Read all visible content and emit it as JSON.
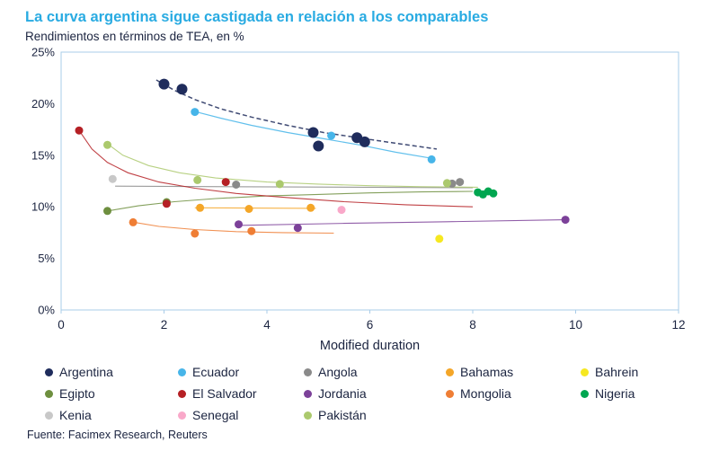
{
  "page": {
    "title": "La curva argentina sigue castigada en relación a los comparables",
    "subtitle": "Rendimientos en términos de TEA, en %",
    "source": "Fuente: Facimex Research, Reuters"
  },
  "colors": {
    "title": "#29abe2",
    "text": "#1b2440",
    "plot_border": "#a9cce8"
  },
  "chart_data": {
    "type": "scatter",
    "title": "La curva argentina sigue castigada en relación a los comparables",
    "subtitle": "Rendimientos en términos de TEA, en %",
    "xlabel": "Modified duration",
    "ylabel": "",
    "xlim": [
      0,
      12
    ],
    "ylim": [
      0,
      25
    ],
    "xticks": [
      0,
      2,
      4,
      6,
      8,
      10,
      12
    ],
    "yticks": [
      0,
      5,
      10,
      15,
      20,
      25
    ],
    "ytick_suffix": "%",
    "grid": false,
    "legend_position": "bottom",
    "series": [
      {
        "name": "Argentina",
        "color": "#1f2c5c",
        "marker_size": 6,
        "points": [
          [
            2.0,
            21.9
          ],
          [
            2.35,
            21.4
          ],
          [
            4.9,
            17.2
          ],
          [
            5.0,
            15.9
          ],
          [
            5.75,
            16.7
          ],
          [
            5.9,
            16.3
          ]
        ],
        "trend": [
          [
            1.85,
            22.3
          ],
          [
            2.2,
            21.3
          ],
          [
            2.6,
            20.4
          ],
          [
            3.1,
            19.5
          ],
          [
            3.7,
            18.7
          ],
          [
            4.4,
            17.9
          ],
          [
            5.1,
            17.2
          ],
          [
            5.9,
            16.6
          ],
          [
            6.6,
            16.1
          ],
          [
            7.3,
            15.6
          ]
        ],
        "trend_dash": true,
        "trend_width": 1.5
      },
      {
        "name": "Ecuador",
        "color": "#47b5e9",
        "marker_size": 4.5,
        "points": [
          [
            2.6,
            19.2
          ],
          [
            5.25,
            16.9
          ],
          [
            7.2,
            14.6
          ]
        ],
        "trend": [
          [
            2.55,
            19.3
          ],
          [
            3.1,
            18.6
          ],
          [
            3.7,
            17.9
          ],
          [
            4.4,
            17.2
          ],
          [
            5.1,
            16.6
          ],
          [
            5.8,
            16.0
          ],
          [
            6.5,
            15.3
          ],
          [
            7.2,
            14.7
          ]
        ],
        "trend_dash": false,
        "trend_width": 1.2
      },
      {
        "name": "Angola",
        "color": "#8a8a8a",
        "marker_size": 4.5,
        "points": [
          [
            3.4,
            12.15
          ],
          [
            7.6,
            12.25
          ],
          [
            7.75,
            12.4
          ]
        ],
        "trend": [
          [
            1.05,
            12.0
          ],
          [
            8.0,
            11.85
          ]
        ],
        "trend_dash": false,
        "trend_width": 1.1
      },
      {
        "name": "Bahamas",
        "color": "#f4a628",
        "marker_size": 4.5,
        "points": [
          [
            2.7,
            9.9
          ],
          [
            3.65,
            9.8
          ],
          [
            4.85,
            9.9
          ]
        ],
        "trend": [
          [
            2.6,
            9.9
          ],
          [
            4.95,
            9.85
          ]
        ],
        "trend_dash": false,
        "trend_width": 1.1
      },
      {
        "name": "Bahrein",
        "color": "#f6e821",
        "marker_size": 4.5,
        "points": [
          [
            7.35,
            6.9
          ]
        ],
        "trend": [],
        "trend_dash": false,
        "trend_width": 1.1
      },
      {
        "name": "Egipto",
        "color": "#6e8f3f",
        "marker_size": 4.5,
        "points": [
          [
            0.9,
            9.6
          ],
          [
            2.05,
            10.45
          ]
        ],
        "trend": [
          [
            0.9,
            9.6
          ],
          [
            1.5,
            10.1
          ],
          [
            2.2,
            10.5
          ],
          [
            3.0,
            10.8
          ],
          [
            4.0,
            11.05
          ],
          [
            5.0,
            11.2
          ],
          [
            6.0,
            11.35
          ],
          [
            7.0,
            11.45
          ],
          [
            8.0,
            11.5
          ]
        ],
        "trend_dash": false,
        "trend_width": 1.1
      },
      {
        "name": "El Salvador",
        "color": "#b52025",
        "marker_size": 4.5,
        "points": [
          [
            0.35,
            17.4
          ],
          [
            2.05,
            10.3
          ],
          [
            3.2,
            12.4
          ]
        ],
        "trend": [
          [
            0.35,
            17.4
          ],
          [
            0.6,
            15.6
          ],
          [
            0.9,
            14.3
          ],
          [
            1.3,
            13.3
          ],
          [
            1.9,
            12.4
          ],
          [
            2.6,
            11.8
          ],
          [
            3.4,
            11.3
          ],
          [
            4.4,
            10.9
          ],
          [
            5.5,
            10.5
          ],
          [
            6.7,
            10.2
          ],
          [
            8.0,
            10.0
          ]
        ],
        "trend_dash": false,
        "trend_width": 1.1
      },
      {
        "name": "Jordania",
        "color": "#7c4199",
        "marker_size": 4.5,
        "points": [
          [
            3.45,
            8.3
          ],
          [
            4.6,
            7.95
          ],
          [
            9.8,
            8.75
          ]
        ],
        "trend": [
          [
            3.4,
            8.2
          ],
          [
            5.5,
            8.4
          ],
          [
            7.5,
            8.55
          ],
          [
            9.8,
            8.75
          ]
        ],
        "trend_dash": false,
        "trend_width": 1.1
      },
      {
        "name": "Mongolia",
        "color": "#ef7e35",
        "marker_size": 4.5,
        "points": [
          [
            1.4,
            8.5
          ],
          [
            2.6,
            7.4
          ],
          [
            3.7,
            7.65
          ]
        ],
        "trend": [
          [
            1.35,
            8.55
          ],
          [
            1.9,
            8.1
          ],
          [
            2.6,
            7.8
          ],
          [
            3.4,
            7.6
          ],
          [
            4.3,
            7.5
          ],
          [
            5.3,
            7.45
          ]
        ],
        "trend_dash": false,
        "trend_width": 1.1
      },
      {
        "name": "Nigeria",
        "color": "#00a650",
        "marker_size": 4.5,
        "points": [
          [
            8.1,
            11.4
          ],
          [
            8.2,
            11.2
          ],
          [
            8.3,
            11.5
          ],
          [
            8.4,
            11.3
          ]
        ],
        "trend": [],
        "trend_dash": false,
        "trend_width": 1.1
      },
      {
        "name": "Kenia",
        "color": "#c8c8c8",
        "marker_size": 4.5,
        "points": [
          [
            1.0,
            12.7
          ]
        ],
        "trend": [],
        "trend_dash": false,
        "trend_width": 1.1
      },
      {
        "name": "Senegal",
        "color": "#f9a8c9",
        "marker_size": 4.5,
        "points": [
          [
            5.45,
            9.7
          ]
        ],
        "trend": [],
        "trend_dash": false,
        "trend_width": 1.1
      },
      {
        "name": "Pakistán",
        "color": "#abc96d",
        "marker_size": 4.5,
        "points": [
          [
            0.9,
            16.0
          ],
          [
            2.65,
            12.6
          ],
          [
            4.25,
            12.2
          ],
          [
            7.5,
            12.3
          ]
        ],
        "trend": [
          [
            0.85,
            16.3
          ],
          [
            1.2,
            15.0
          ],
          [
            1.7,
            14.0
          ],
          [
            2.3,
            13.3
          ],
          [
            3.0,
            12.8
          ],
          [
            4.0,
            12.4
          ],
          [
            5.0,
            12.2
          ],
          [
            6.0,
            12.05
          ],
          [
            7.0,
            11.95
          ],
          [
            8.1,
            11.9
          ]
        ],
        "trend_dash": false,
        "trend_width": 1.1
      }
    ]
  }
}
